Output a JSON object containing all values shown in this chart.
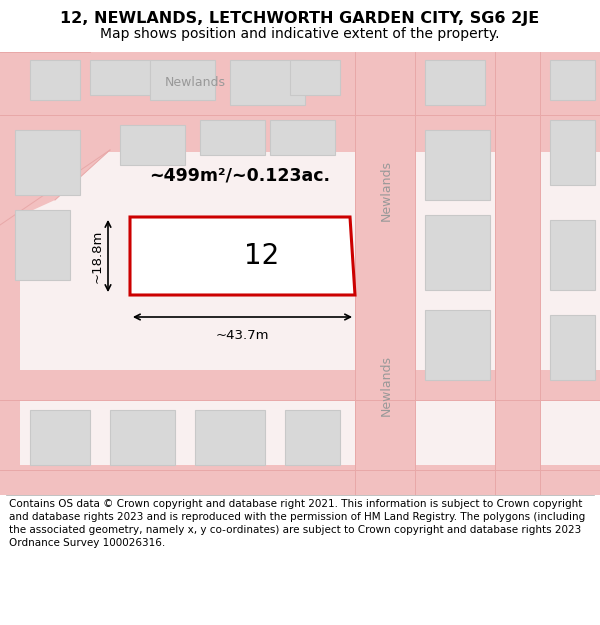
{
  "title_line1": "12, NEWLANDS, LETCHWORTH GARDEN CITY, SG6 2JE",
  "title_line2": "Map shows position and indicative extent of the property.",
  "footer_text": "Contains OS data © Crown copyright and database right 2021. This information is subject to Crown copyright and database rights 2023 and is reproduced with the permission of HM Land Registry. The polygons (including the associated geometry, namely x, y co-ordinates) are subject to Crown copyright and database rights 2023 Ordnance Survey 100026316.",
  "map_bg": "#f9f0f0",
  "road_color": "#f2c0c0",
  "road_edge_color": "#e8a0a0",
  "building_fill": "#d8d8d8",
  "building_outline": "#c8c8c8",
  "plot_rect_color": "#cc0000",
  "plot_label": "12",
  "area_label": "~499m²/~0.123ac.",
  "width_label": "~43.7m",
  "height_label": "~18.8m",
  "road_label_top": "Newlands",
  "road_label_mid": "Newlands",
  "road_label_bot": "Newlands",
  "title_fontsize": 11.5,
  "subtitle_fontsize": 10,
  "footer_fontsize": 7.5
}
